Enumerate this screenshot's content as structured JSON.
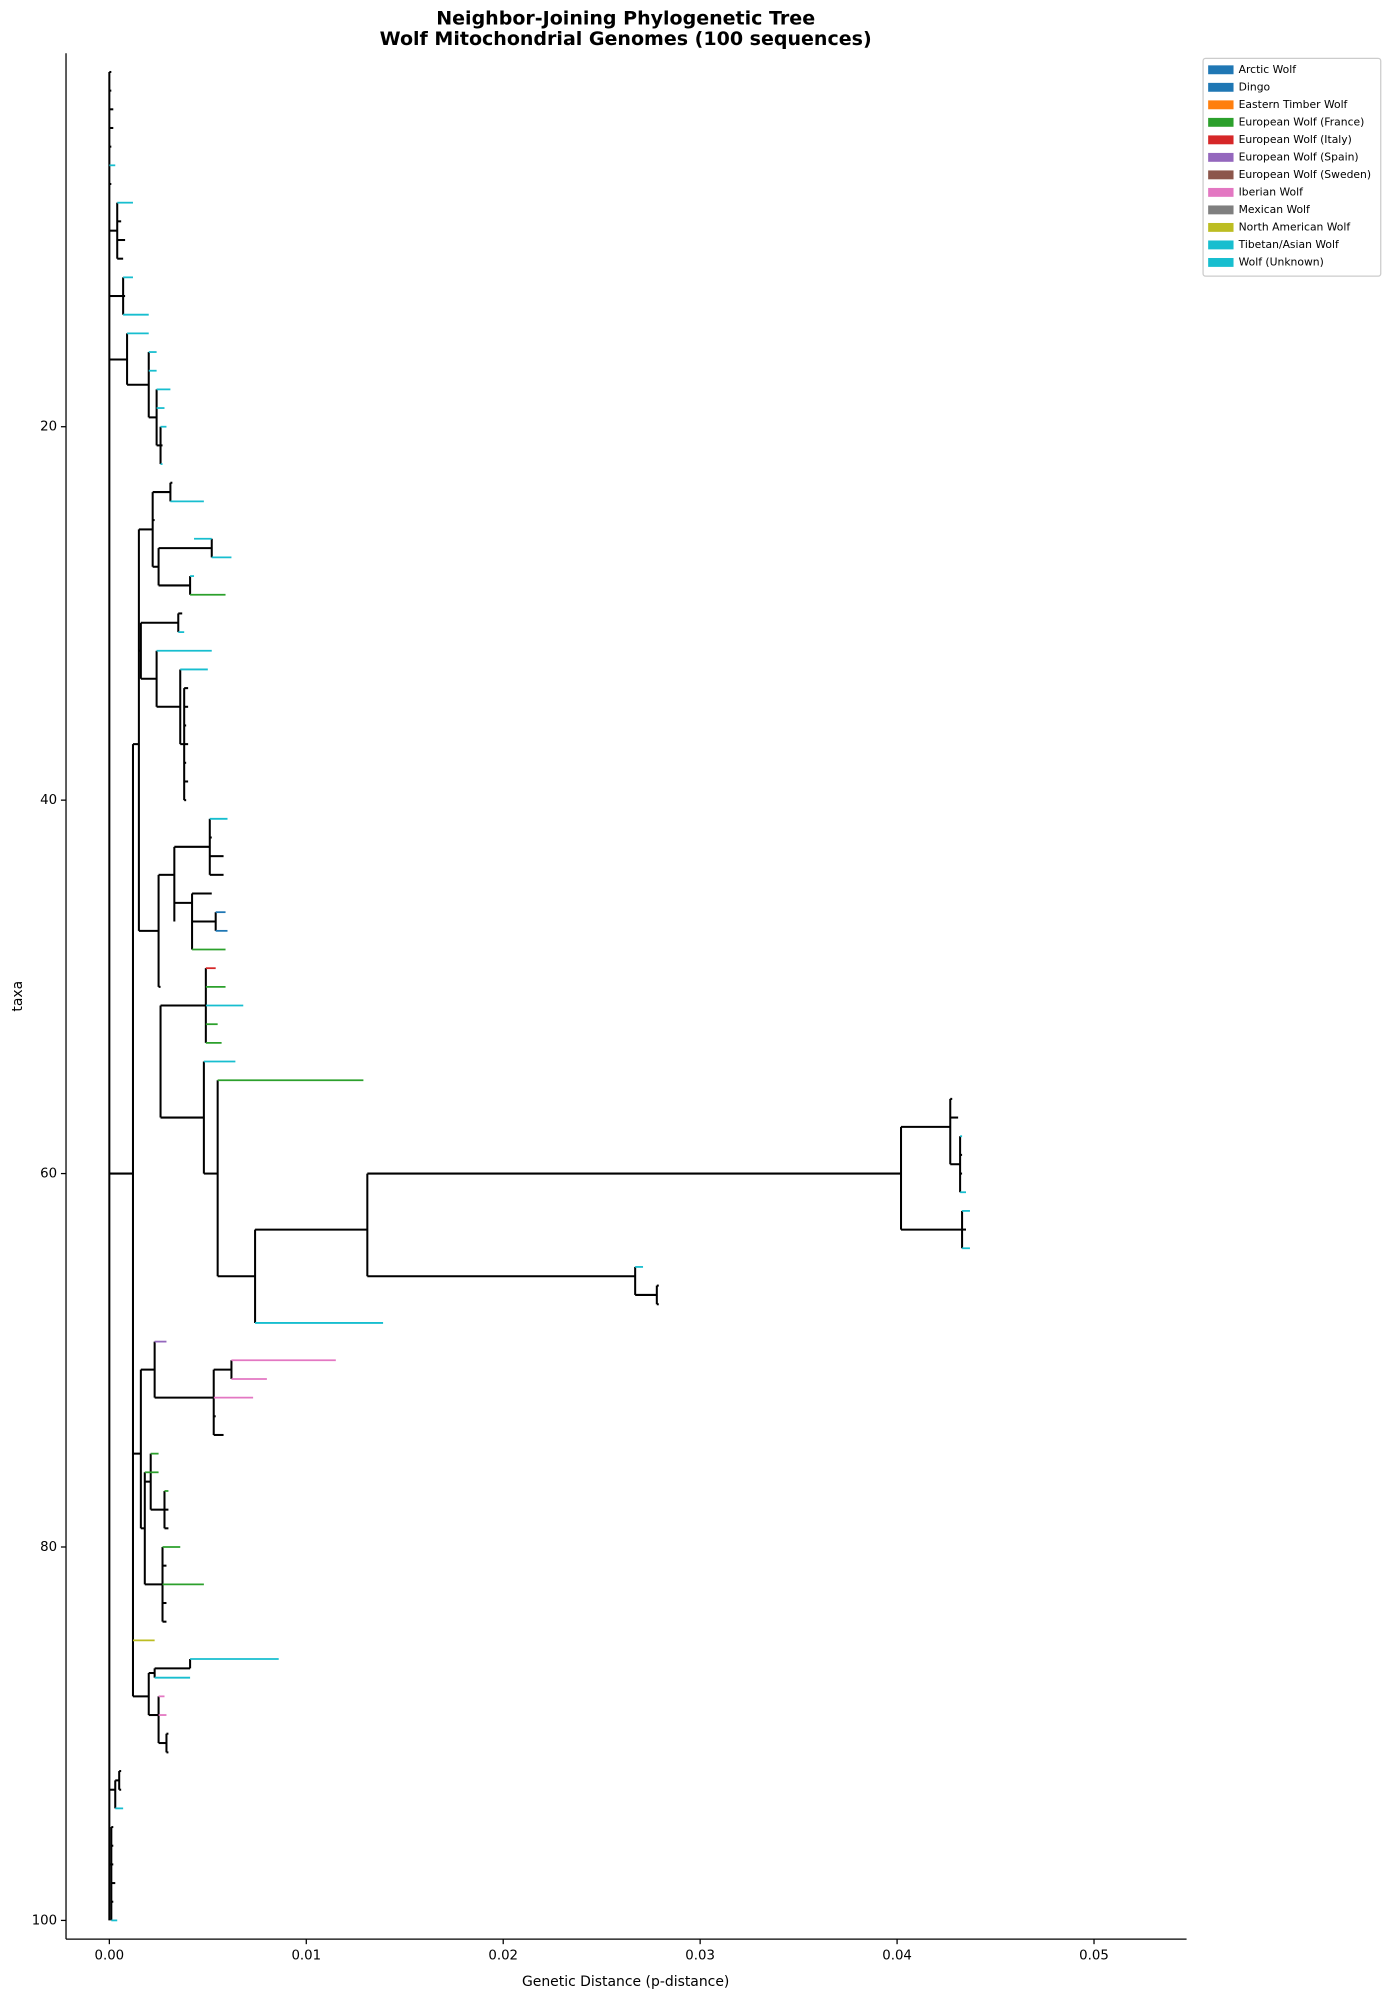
{
  "chart_data": {
    "type": "tree",
    "title": "Neighbor-Joining Phylogenetic Tree",
    "subtitle": "Wolf Mitochondrial Genomes (100 sequences)",
    "xlabel": "Genetic Distance (p-distance)",
    "ylabel": "taxa",
    "xlim": [
      -0.0022,
      0.0547
    ],
    "ylim": [
      101,
      0
    ],
    "xticks": [
      {
        "value": 0,
        "label": "0.00"
      },
      {
        "value": 0.01,
        "label": "0.01"
      },
      {
        "value": 0.02,
        "label": "0.02"
      },
      {
        "value": 0.03,
        "label": "0.03"
      },
      {
        "value": 0.04,
        "label": "0.04"
      },
      {
        "value": 0.05,
        "label": "0.05"
      }
    ],
    "yticks": [
      20,
      40,
      60,
      80,
      100
    ],
    "legend_loc": "upper right",
    "legend": [
      {
        "name": "Arctic Wolf",
        "color": "#1f77b4"
      },
      {
        "name": "Dingo",
        "color": "#1f77b4"
      },
      {
        "name": "Eastern Timber Wolf",
        "color": "#ff7f0e"
      },
      {
        "name": "European Wolf (France)",
        "color": "#2ca02c"
      },
      {
        "name": "European Wolf (Italy)",
        "color": "#d62728"
      },
      {
        "name": "European Wolf (Spain)",
        "color": "#9467bd"
      },
      {
        "name": "European Wolf (Sweden)",
        "color": "#8c564b"
      },
      {
        "name": "Iberian Wolf",
        "color": "#e377c2"
      },
      {
        "name": "Mexican Wolf",
        "color": "#7f7f7f"
      },
      {
        "name": "North American Wolf",
        "color": "#bcbd22"
      },
      {
        "name": "Tibetan/Asian Wolf",
        "color": "#17becf"
      },
      {
        "name": "Wolf (Unknown)",
        "color": "#17becf"
      }
    ],
    "branches": [
      [
        0,
        0.0001,
        1,
        null
      ],
      [
        0,
        0.0001,
        2,
        null
      ],
      [
        0,
        0.0002,
        3,
        null
      ],
      [
        0,
        0.0002,
        4,
        null
      ],
      [
        0,
        0.0001,
        5,
        null
      ],
      [
        0,
        0.0003,
        6,
        10
      ],
      [
        0,
        0.0001,
        7,
        null
      ],
      [
        0.0004,
        0.0012,
        8,
        10
      ],
      [
        0.0004,
        0.0006,
        9,
        null
      ],
      [
        0.0004,
        0.0008,
        10,
        null
      ],
      [
        0.0004,
        0.0007,
        11,
        null
      ],
      [
        0.0007,
        0.0012,
        12,
        10
      ],
      [
        0.0007,
        0.0008,
        13,
        null
      ],
      [
        0.0007,
        0.002,
        14,
        10
      ],
      [
        0.0009,
        0.002,
        15,
        10
      ],
      [
        0.002,
        0.0024,
        16,
        10
      ],
      [
        0.002,
        0.0024,
        17,
        10
      ],
      [
        0.0024,
        0.0031,
        18,
        10
      ],
      [
        0.0024,
        0.0028,
        19,
        10
      ],
      [
        0.0026,
        0.0029,
        20,
        10
      ],
      [
        0.0026,
        0.0027,
        21,
        null
      ],
      [
        0.0026,
        0.0027,
        22,
        10
      ],
      [
        0.0031,
        0.0032,
        23,
        null
      ],
      [
        0.0031,
        0.0048,
        24,
        10
      ],
      [
        0.0022,
        0.0023,
        25,
        null
      ],
      [
        0.0043,
        0.0052,
        26,
        10
      ],
      [
        0.0052,
        0.0062,
        27,
        10
      ],
      [
        0.0041,
        0.0043,
        28,
        10
      ],
      [
        0.0041,
        0.0059,
        29,
        3
      ],
      [
        0.0035,
        0.0037,
        30,
        null
      ],
      [
        0.0035,
        0.0038,
        31,
        10
      ],
      [
        0.0024,
        0.0052,
        32,
        10
      ],
      [
        0.0036,
        0.005,
        33,
        10
      ],
      [
        0.0038,
        0.004,
        34,
        null
      ],
      [
        0.0038,
        0.004,
        35,
        null
      ],
      [
        0.0038,
        0.0039,
        36,
        null
      ],
      [
        0.0038,
        0.004,
        37,
        null
      ],
      [
        0.0038,
        0.0039,
        38,
        null
      ],
      [
        0.0038,
        0.004,
        39,
        null
      ],
      [
        0.0038,
        0.0039,
        40,
        null
      ],
      [
        0.0051,
        0.006,
        41,
        10
      ],
      [
        0.0051,
        0.0052,
        42,
        null
      ],
      [
        0.0051,
        0.0058,
        43,
        null
      ],
      [
        0.0051,
        0.0058,
        44,
        null
      ],
      [
        0.0042,
        0.0052,
        45,
        null
      ],
      [
        0.0054,
        0.0059,
        46,
        0
      ],
      [
        0.0054,
        0.006,
        47,
        1
      ],
      [
        0.0042,
        0.0059,
        48,
        3
      ],
      [
        0.0049,
        0.0054,
        49,
        4
      ],
      [
        0.0049,
        0.0059,
        50,
        3
      ],
      [
        0.0049,
        0.0068,
        51,
        10
      ],
      [
        0.0049,
        0.0055,
        52,
        3
      ],
      [
        0.0049,
        0.0057,
        53,
        3
      ],
      [
        0.0048,
        0.0064,
        54,
        10
      ],
      [
        0.0055,
        0.0129,
        55,
        3
      ],
      [
        0.0427,
        0.0428,
        56,
        null
      ],
      [
        0.0427,
        0.0431,
        57,
        null
      ],
      [
        0.0432,
        0.0433,
        58,
        10
      ],
      [
        0.0432,
        0.0433,
        59,
        null
      ],
      [
        0.0432,
        0.0433,
        60,
        null
      ],
      [
        0.0432,
        0.0435,
        61,
        10
      ],
      [
        0.0433,
        0.0437,
        62,
        10
      ],
      [
        0.0433,
        0.0435,
        63,
        null
      ],
      [
        0.0433,
        0.0437,
        64,
        10
      ],
      [
        0.0267,
        0.0271,
        65,
        10
      ],
      [
        0.0278,
        0.0279,
        66,
        null
      ],
      [
        0.0278,
        0.0279,
        67,
        null
      ],
      [
        0.0074,
        0.0139,
        68,
        10
      ],
      [
        0.0023,
        0.0029,
        69,
        5
      ],
      [
        0.0062,
        0.0115,
        70,
        7
      ],
      [
        0.0062,
        0.008,
        71,
        7
      ],
      [
        0.0053,
        0.0073,
        72,
        7
      ],
      [
        0.0053,
        0.0054,
        73,
        null
      ],
      [
        0.0053,
        0.0058,
        74,
        null
      ],
      [
        0.0021,
        0.0025,
        75,
        3
      ],
      [
        0.0018,
        0.0025,
        76,
        3
      ],
      [
        0.0028,
        0.003,
        77,
        3
      ],
      [
        0.0028,
        0.003,
        78,
        null
      ],
      [
        0.0028,
        0.003,
        79,
        null
      ],
      [
        0.0027,
        0.0036,
        80,
        3
      ],
      [
        0.0027,
        0.0029,
        81,
        null
      ],
      [
        0.0027,
        0.0048,
        82,
        3
      ],
      [
        0.0027,
        0.0029,
        83,
        null
      ],
      [
        0.0027,
        0.0029,
        84,
        null
      ],
      [
        0.0012,
        0.0023,
        85,
        9
      ],
      [
        0.0041,
        0.0086,
        86,
        10
      ],
      [
        0.0023,
        0.0041,
        87,
        10
      ],
      [
        0.0025,
        0.0028,
        88,
        7
      ],
      [
        0.0025,
        0.0029,
        89,
        7
      ],
      [
        0.0029,
        0.003,
        90,
        null
      ],
      [
        0.0029,
        0.003,
        91,
        null
      ],
      [
        0.0005,
        0.0006,
        92,
        null
      ],
      [
        0.0005,
        0.0006,
        93,
        null
      ],
      [
        0.0003,
        0.0007,
        94,
        10
      ],
      [
        0.0001,
        0.0002,
        95,
        null
      ],
      [
        0.0001,
        0.0002,
        96,
        null
      ],
      [
        0.0001,
        0.0002,
        97,
        null
      ],
      [
        0.0001,
        0.0003,
        98,
        null
      ],
      [
        0.0001,
        0.0002,
        99,
        null
      ],
      [
        0.0001,
        0.0004,
        100,
        10
      ],
      [
        0,
        0.0004,
        9.5,
        null
      ],
      [
        0,
        0.0007,
        13,
        null
      ],
      [
        0.0024,
        0.0026,
        21,
        null
      ],
      [
        0.002,
        0.0024,
        19.5,
        null
      ],
      [
        0.0009,
        0.002,
        17.75,
        null
      ],
      [
        0,
        0.0009,
        16.4,
        null
      ],
      [
        0.0022,
        0.0031,
        23.5,
        null
      ],
      [
        0.0025,
        0.0052,
        26.5,
        null
      ],
      [
        0.0025,
        0.0041,
        28.5,
        null
      ],
      [
        0.0022,
        0.0025,
        27.5,
        null
      ],
      [
        0.0015,
        0.0022,
        25.5,
        null
      ],
      [
        0.0016,
        0.0035,
        30.5,
        null
      ],
      [
        0.0036,
        0.0038,
        37,
        null
      ],
      [
        0.0024,
        0.0036,
        35,
        null
      ],
      [
        0.0016,
        0.0024,
        33.5,
        null
      ],
      [
        0.0015,
        0.0016,
        32,
        null
      ],
      [
        0.0033,
        0.0051,
        42.5,
        null
      ],
      [
        0.0042,
        0.0054,
        46.5,
        null
      ],
      [
        0.0033,
        0.0042,
        45.5,
        null
      ],
      [
        0.0025,
        0.0033,
        44,
        null
      ],
      [
        0.0131,
        0.0402,
        60,
        null
      ],
      [
        0.0402,
        0.0427,
        57.5,
        null
      ],
      [
        0.0427,
        0.0432,
        59.5,
        null
      ],
      [
        0.0402,
        0.0433,
        63,
        null
      ],
      [
        0.0131,
        0.0267,
        65.5,
        null
      ],
      [
        0.0267,
        0.0278,
        66.5,
        null
      ],
      [
        0.0074,
        0.0131,
        63,
        null
      ],
      [
        0.0055,
        0.0074,
        65.5,
        null
      ],
      [
        0.0048,
        0.0055,
        60,
        null
      ],
      [
        0.0026,
        0.0049,
        51,
        null
      ],
      [
        0.0026,
        0.0048,
        57,
        null
      ],
      [
        0.0025,
        0.0026,
        50,
        null
      ],
      [
        0.0015,
        0.0025,
        47,
        null
      ],
      [
        0.0062,
        0.0062,
        70.5,
        null
      ],
      [
        0.0053,
        0.0062,
        70.5,
        null
      ],
      [
        0.0023,
        0.0053,
        72,
        null
      ],
      [
        0.0016,
        0.0023,
        70.5,
        null
      ],
      [
        0.0021,
        0.0028,
        78,
        null
      ],
      [
        0.0018,
        0.0021,
        76.5,
        null
      ],
      [
        0.0018,
        0.0027,
        82,
        null
      ],
      [
        0.0016,
        0.0018,
        79,
        null
      ],
      [
        0.0012,
        0.0016,
        75,
        null
      ],
      [
        0.0023,
        0.0041,
        86.5,
        null
      ],
      [
        0.0025,
        0.0029,
        90.5,
        null
      ],
      [
        0.002,
        0.0025,
        89,
        null
      ],
      [
        0.002,
        0.0023,
        86.75,
        null
      ],
      [
        0.0012,
        0.002,
        88,
        null
      ],
      [
        0.0012,
        0.0015,
        37,
        null
      ],
      [
        0,
        0.0012,
        60,
        null
      ],
      [
        0.0003,
        0.0005,
        92.5,
        null
      ],
      [
        0,
        0.0003,
        93,
        null
      ],
      [
        0,
        0.0001,
        97,
        null
      ]
    ],
    "connectors": [
      [
        0,
        1,
        100
      ],
      [
        0.0004,
        8,
        11
      ],
      [
        0.0007,
        12,
        14
      ],
      [
        0.0024,
        18,
        21
      ],
      [
        0.002,
        16,
        19.5
      ],
      [
        0.0009,
        15,
        17.75
      ],
      [
        0.0026,
        20,
        22
      ],
      [
        0.0031,
        23,
        24
      ],
      [
        0.0052,
        26,
        27
      ],
      [
        0.0041,
        28,
        29
      ],
      [
        0.0025,
        26.5,
        28.5
      ],
      [
        0.0022,
        23.5,
        27.5
      ],
      [
        0.0035,
        30,
        31
      ],
      [
        0.0038,
        34,
        40
      ],
      [
        0.0036,
        33,
        37
      ],
      [
        0.0024,
        32,
        35
      ],
      [
        0.0016,
        30.5,
        33.5
      ],
      [
        0.0051,
        41,
        44
      ],
      [
        0.0054,
        46,
        47
      ],
      [
        0.0042,
        45,
        48
      ],
      [
        0.0033,
        42.5,
        46.5
      ],
      [
        0.0131,
        60,
        65.5
      ],
      [
        0.0402,
        57.5,
        63
      ],
      [
        0.0427,
        56,
        59.5
      ],
      [
        0.0432,
        58,
        61
      ],
      [
        0.0433,
        62,
        64
      ],
      [
        0.0267,
        65,
        66.5
      ],
      [
        0.0278,
        66,
        67
      ],
      [
        0.0074,
        63,
        68
      ],
      [
        0.0055,
        55,
        65.5
      ],
      [
        0.0049,
        49,
        53
      ],
      [
        0.0048,
        54,
        60
      ],
      [
        0.0026,
        51,
        57
      ],
      [
        0.0025,
        44,
        50
      ],
      [
        0.0015,
        25.5,
        47
      ],
      [
        0.0062,
        70,
        71
      ],
      [
        0.0053,
        70.5,
        74
      ],
      [
        0.0023,
        69,
        72
      ],
      [
        0.0028,
        77,
        79
      ],
      [
        0.0021,
        75,
        78
      ],
      [
        0.0027,
        80,
        84
      ],
      [
        0.0018,
        76,
        82
      ],
      [
        0.0016,
        70.5,
        79
      ],
      [
        0.0041,
        86,
        86.5
      ],
      [
        0.0023,
        86.5,
        87
      ],
      [
        0.0029,
        90,
        91
      ],
      [
        0.0025,
        88,
        90.5
      ],
      [
        0.002,
        86.75,
        89
      ],
      [
        0.0012,
        37,
        88
      ],
      [
        0.0005,
        92,
        93
      ],
      [
        0.0003,
        92.5,
        94
      ],
      [
        0.0001,
        95,
        100
      ]
    ]
  }
}
